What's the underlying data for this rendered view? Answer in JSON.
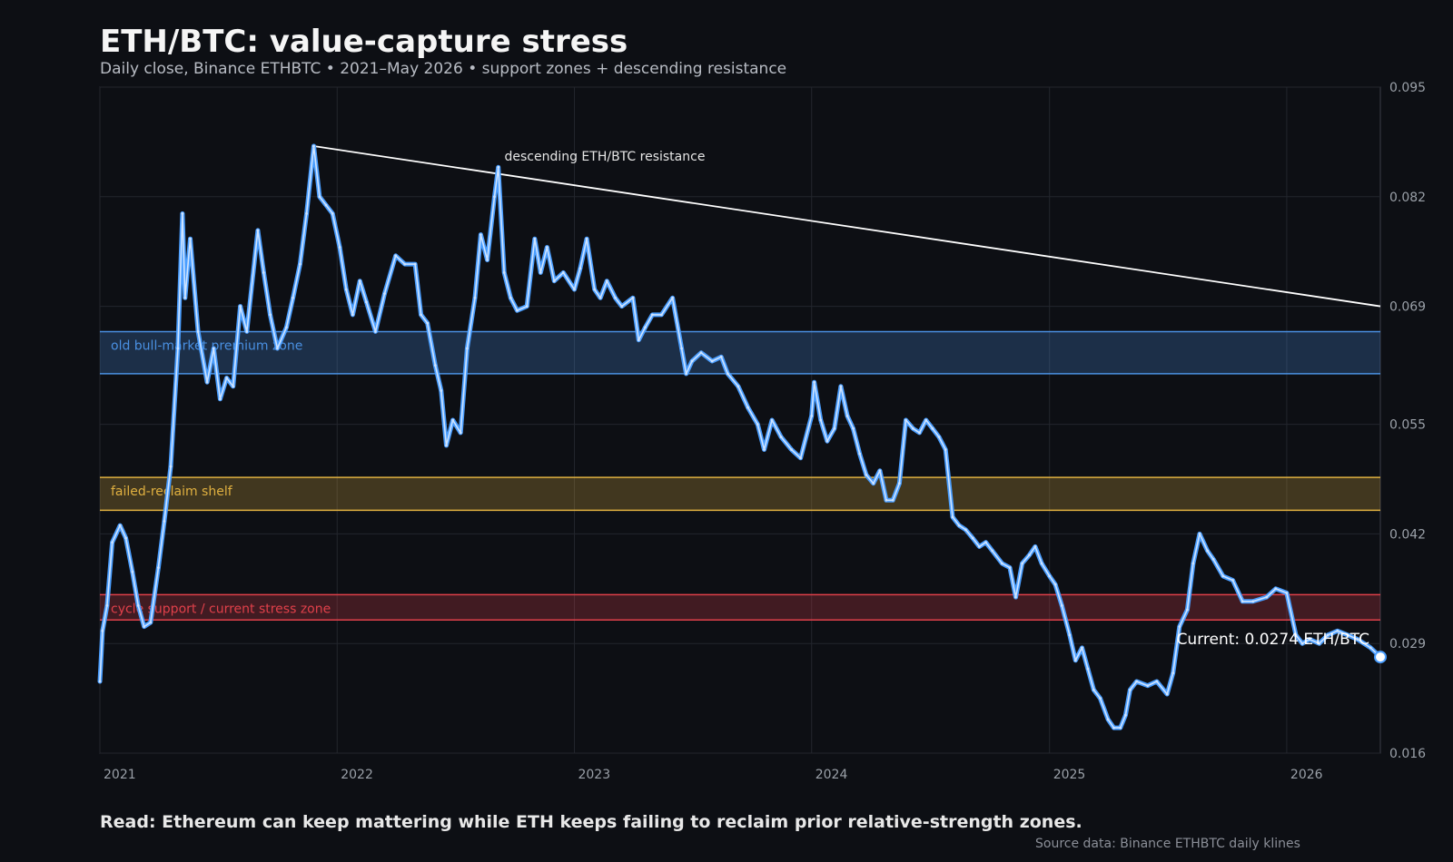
{
  "header": {
    "title": "ETH/BTC: value-capture stress",
    "subtitle": "Daily close, Binance ETHBTC • 2021–May 2026 • support zones + descending resistance"
  },
  "footer": {
    "read": "Read: Ethereum can keep mattering while ETH keeps failing to reclaim prior relative-strength zones.",
    "source": "Source data: Binance ETHBTC daily klines"
  },
  "colors": {
    "background": "#0d0f14",
    "line": "#4a9eff",
    "line_glow": "#cfe4ff",
    "resistance": "#ffffff",
    "premium_zone": "#4a90e2",
    "shelf_zone": "#e0b040",
    "support_zone": "#e0404a"
  },
  "chart_data": {
    "type": "line",
    "title": "ETH/BTC: value-capture stress",
    "x_tick_labels": [
      "2021",
      "2022",
      "2023",
      "2024",
      "2025",
      "2026"
    ],
    "y_tick_labels": [
      "0.095",
      "0.082",
      "0.069",
      "0.055",
      "0.042",
      "0.029",
      "0.016"
    ],
    "x_range": [
      "2021-01-01",
      "2026-05-25"
    ],
    "y_range": [
      0.016,
      0.095
    ],
    "y_axis_side": "right",
    "grid": true,
    "series": [
      {
        "points": [
          [
            "2021-01-01",
            0.0245
          ],
          [
            "2021-01-05",
            0.0305
          ],
          [
            "2021-01-12",
            0.0335
          ],
          [
            "2021-01-20",
            0.041
          ],
          [
            "2021-02-01",
            0.043
          ],
          [
            "2021-02-10",
            0.0415
          ],
          [
            "2021-02-20",
            0.0375
          ],
          [
            "2021-03-01",
            0.0335
          ],
          [
            "2021-03-10",
            0.031
          ],
          [
            "2021-03-20",
            0.0315
          ],
          [
            "2021-04-01",
            0.038
          ],
          [
            "2021-04-10",
            0.0435
          ],
          [
            "2021-04-20",
            0.05
          ],
          [
            "2021-05-01",
            0.064
          ],
          [
            "2021-05-08",
            0.08
          ],
          [
            "2021-05-12",
            0.07
          ],
          [
            "2021-05-20",
            0.077
          ],
          [
            "2021-06-01",
            0.066
          ],
          [
            "2021-06-15",
            0.06
          ],
          [
            "2021-06-25",
            0.064
          ],
          [
            "2021-07-05",
            0.058
          ],
          [
            "2021-07-15",
            0.0605
          ],
          [
            "2021-07-25",
            0.0595
          ],
          [
            "2021-08-05",
            0.069
          ],
          [
            "2021-08-15",
            0.066
          ],
          [
            "2021-09-01",
            0.078
          ],
          [
            "2021-09-10",
            0.073
          ],
          [
            "2021-09-20",
            0.068
          ],
          [
            "2021-10-01",
            0.064
          ],
          [
            "2021-10-15",
            0.0665
          ],
          [
            "2021-10-25",
            0.07
          ],
          [
            "2021-11-05",
            0.074
          ],
          [
            "2021-11-15",
            0.08
          ],
          [
            "2021-11-26",
            0.088
          ],
          [
            "2021-12-05",
            0.082
          ],
          [
            "2021-12-15",
            0.081
          ],
          [
            "2021-12-25",
            0.08
          ],
          [
            "2022-01-05",
            0.076
          ],
          [
            "2022-01-15",
            0.071
          ],
          [
            "2022-01-25",
            0.068
          ],
          [
            "2022-02-05",
            0.072
          ],
          [
            "2022-02-15",
            0.0695
          ],
          [
            "2022-03-01",
            0.066
          ],
          [
            "2022-03-15",
            0.0705
          ],
          [
            "2022-04-01",
            0.075
          ],
          [
            "2022-04-15",
            0.074
          ],
          [
            "2022-05-01",
            0.074
          ],
          [
            "2022-05-10",
            0.068
          ],
          [
            "2022-05-20",
            0.067
          ],
          [
            "2022-06-01",
            0.062
          ],
          [
            "2022-06-10",
            0.059
          ],
          [
            "2022-06-18",
            0.0525
          ],
          [
            "2022-06-28",
            0.0555
          ],
          [
            "2022-07-10",
            0.054
          ],
          [
            "2022-07-20",
            0.064
          ],
          [
            "2022-08-01",
            0.07
          ],
          [
            "2022-08-10",
            0.0775
          ],
          [
            "2022-08-20",
            0.0745
          ],
          [
            "2022-08-31",
            0.082
          ],
          [
            "2022-09-06",
            0.0855
          ],
          [
            "2022-09-15",
            0.073
          ],
          [
            "2022-09-25",
            0.07
          ],
          [
            "2022-10-05",
            0.0685
          ],
          [
            "2022-10-20",
            0.069
          ],
          [
            "2022-11-01",
            0.077
          ],
          [
            "2022-11-10",
            0.073
          ],
          [
            "2022-11-20",
            0.076
          ],
          [
            "2022-12-01",
            0.072
          ],
          [
            "2022-12-15",
            0.073
          ],
          [
            "2023-01-01",
            0.071
          ],
          [
            "2023-01-10",
            0.0735
          ],
          [
            "2023-01-20",
            0.077
          ],
          [
            "2023-02-01",
            0.071
          ],
          [
            "2023-02-10",
            0.07
          ],
          [
            "2023-02-20",
            0.072
          ],
          [
            "2023-03-05",
            0.07
          ],
          [
            "2023-03-15",
            0.069
          ],
          [
            "2023-04-01",
            0.07
          ],
          [
            "2023-04-10",
            0.065
          ],
          [
            "2023-04-20",
            0.0665
          ],
          [
            "2023-05-01",
            0.068
          ],
          [
            "2023-05-15",
            0.068
          ],
          [
            "2023-06-01",
            0.07
          ],
          [
            "2023-06-15",
            0.064
          ],
          [
            "2023-06-22",
            0.061
          ],
          [
            "2023-07-01",
            0.0625
          ],
          [
            "2023-07-15",
            0.0635
          ],
          [
            "2023-08-01",
            0.0625
          ],
          [
            "2023-08-15",
            0.063
          ],
          [
            "2023-08-25",
            0.061
          ],
          [
            "2023-09-10",
            0.0595
          ],
          [
            "2023-09-25",
            0.057
          ],
          [
            "2023-10-10",
            0.055
          ],
          [
            "2023-10-20",
            0.052
          ],
          [
            "2023-11-01",
            0.0555
          ],
          [
            "2023-11-15",
            0.0535
          ],
          [
            "2023-12-01",
            0.052
          ],
          [
            "2023-12-15",
            0.051
          ],
          [
            "2024-01-01",
            0.056
          ],
          [
            "2024-01-05",
            0.06
          ],
          [
            "2024-01-15",
            0.0555
          ],
          [
            "2024-01-25",
            0.053
          ],
          [
            "2024-02-05",
            0.0545
          ],
          [
            "2024-02-15",
            0.0595
          ],
          [
            "2024-02-25",
            0.056
          ],
          [
            "2024-03-05",
            0.0545
          ],
          [
            "2024-03-15",
            0.0515
          ],
          [
            "2024-03-25",
            0.049
          ],
          [
            "2024-04-05",
            0.048
          ],
          [
            "2024-04-15",
            0.0495
          ],
          [
            "2024-04-25",
            0.046
          ],
          [
            "2024-05-05",
            0.046
          ],
          [
            "2024-05-15",
            0.048
          ],
          [
            "2024-05-25",
            0.0555
          ],
          [
            "2024-06-05",
            0.0545
          ],
          [
            "2024-06-15",
            0.054
          ],
          [
            "2024-06-25",
            0.0555
          ],
          [
            "2024-07-05",
            0.0545
          ],
          [
            "2024-07-15",
            0.0535
          ],
          [
            "2024-07-25",
            0.052
          ],
          [
            "2024-08-05",
            0.044
          ],
          [
            "2024-08-15",
            0.043
          ],
          [
            "2024-08-25",
            0.0425
          ],
          [
            "2024-09-05",
            0.0415
          ],
          [
            "2024-09-15",
            0.0405
          ],
          [
            "2024-09-25",
            0.041
          ],
          [
            "2024-10-05",
            0.04
          ],
          [
            "2024-10-20",
            0.0385
          ],
          [
            "2024-11-01",
            0.038
          ],
          [
            "2024-11-10",
            0.0345
          ],
          [
            "2024-11-20",
            0.0385
          ],
          [
            "2024-12-01",
            0.0395
          ],
          [
            "2024-12-10",
            0.0405
          ],
          [
            "2024-12-20",
            0.0385
          ],
          [
            "2025-01-01",
            0.037
          ],
          [
            "2025-01-10",
            0.036
          ],
          [
            "2025-01-20",
            0.0335
          ],
          [
            "2025-02-01",
            0.03
          ],
          [
            "2025-02-10",
            0.027
          ],
          [
            "2025-02-20",
            0.0285
          ],
          [
            "2025-03-01",
            0.026
          ],
          [
            "2025-03-10",
            0.0235
          ],
          [
            "2025-03-20",
            0.0225
          ],
          [
            "2025-04-01",
            0.02
          ],
          [
            "2025-04-10",
            0.019
          ],
          [
            "2025-04-20",
            0.019
          ],
          [
            "2025-04-28",
            0.0205
          ],
          [
            "2025-05-05",
            0.0235
          ],
          [
            "2025-05-15",
            0.0245
          ],
          [
            "2025-06-01",
            0.024
          ],
          [
            "2025-06-15",
            0.0245
          ],
          [
            "2025-07-01",
            0.023
          ],
          [
            "2025-07-10",
            0.0255
          ],
          [
            "2025-07-20",
            0.031
          ],
          [
            "2025-08-01",
            0.033
          ],
          [
            "2025-08-10",
            0.0385
          ],
          [
            "2025-08-20",
            0.042
          ],
          [
            "2025-09-01",
            0.04
          ],
          [
            "2025-09-10",
            0.039
          ],
          [
            "2025-09-25",
            0.037
          ],
          [
            "2025-10-10",
            0.0365
          ],
          [
            "2025-10-25",
            0.034
          ],
          [
            "2025-11-10",
            0.034
          ],
          [
            "2025-12-01",
            0.0345
          ],
          [
            "2025-12-15",
            0.0355
          ],
          [
            "2026-01-01",
            0.035
          ],
          [
            "2026-01-15",
            0.03
          ],
          [
            "2026-01-25",
            0.029
          ],
          [
            "2026-02-05",
            0.0295
          ],
          [
            "2026-02-20",
            0.029
          ],
          [
            "2026-03-05",
            0.03
          ],
          [
            "2026-03-20",
            0.0305
          ],
          [
            "2026-04-05",
            0.03
          ],
          [
            "2026-04-20",
            0.0295
          ],
          [
            "2026-05-10",
            0.0285
          ],
          [
            "2026-05-25",
            0.0274
          ]
        ]
      }
    ],
    "zones": [
      {
        "label": "old bull-market premium zone",
        "y_from": 0.061,
        "y_to": 0.066,
        "color": "#4a90e2"
      },
      {
        "label": "failed-reclaim shelf",
        "y_from": 0.0448,
        "y_to": 0.0487,
        "color": "#e0b040"
      },
      {
        "label": "cycle support / current stress zone",
        "y_from": 0.0318,
        "y_to": 0.0348,
        "color": "#e0404a"
      }
    ],
    "resistance": {
      "label": "descending ETH/BTC resistance",
      "start": [
        "2021-11-26",
        0.088
      ],
      "end": [
        "2026-05-25",
        0.069
      ]
    },
    "current": {
      "date": "2026-05-25",
      "value": 0.0274,
      "label": "Current: 0.0274 ETH/BTC"
    }
  }
}
